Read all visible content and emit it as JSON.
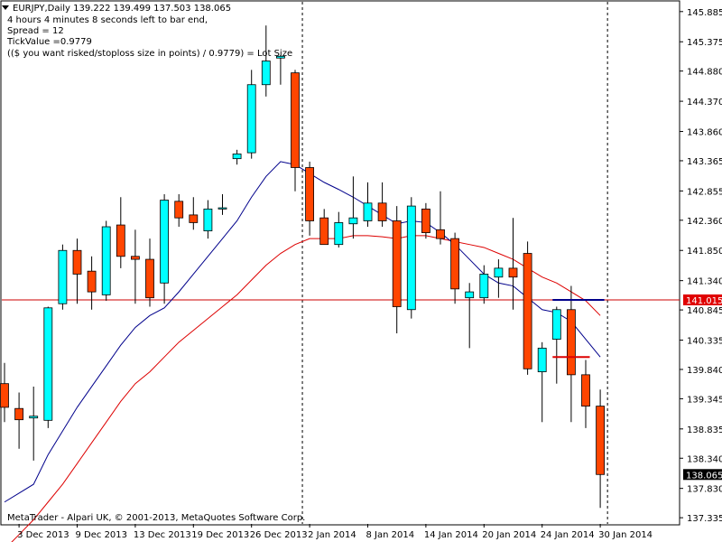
{
  "header": {
    "symbol_line": "EURJPY,Daily  139.222 139.499 137.503 138.065",
    "timer_line": "4 hours 4 minutes 8 seconds left to bar end,",
    "spread_line": "Spread = 12",
    "tickvalue_line": "TickValue =0.9779",
    "lot_line": "(($ you want risked/stoploss size in points) / 0.9779) = Lot Size"
  },
  "copyright": "MetaTrader - Alpari UK, © 2001-2013, MetaQuotes Software Corp.",
  "colors": {
    "bull": "#00FFFF",
    "bear": "#FF4500",
    "fast_ma": "#00008B",
    "slow_ma": "#DD0000",
    "hline": "#CC0000",
    "price_label_bg": "#E00000"
  },
  "chart_data": {
    "type": "candlestick",
    "symbol": "EURJPY",
    "timeframe": "Daily",
    "ylim": [
      137.23,
      146.05
    ],
    "y_ticks": [
      "145.885",
      "145.375",
      "144.880",
      "144.370",
      "143.860",
      "143.365",
      "142.855",
      "142.360",
      "141.850",
      "141.340",
      "140.845",
      "140.335",
      "139.840",
      "139.345",
      "138.835",
      "138.340",
      "137.830",
      "137.335"
    ],
    "x_ticks": [
      {
        "label": "3 Dec 2013",
        "index": 1
      },
      {
        "label": "9 Dec 2013",
        "index": 5
      },
      {
        "label": "13 Dec 2013",
        "index": 9
      },
      {
        "label": "19 Dec 2013",
        "index": 13
      },
      {
        "label": "26 Dec 2013",
        "index": 17
      },
      {
        "label": "2 Jan 2014",
        "index": 21
      },
      {
        "label": "8 Jan 2014",
        "index": 25
      },
      {
        "label": "14 Jan 2014",
        "index": 29
      },
      {
        "label": "20 Jan 2014",
        "index": 33
      },
      {
        "label": "24 Jan 2014",
        "index": 37
      },
      {
        "label": "30 Jan 2014",
        "index": 41
      }
    ],
    "ohlc": [
      [
        139.6,
        139.95,
        138.95,
        139.2
      ],
      [
        139.18,
        139.45,
        138.5,
        138.99
      ],
      [
        139.02,
        139.55,
        138.3,
        139.05
      ],
      [
        138.98,
        140.9,
        138.85,
        140.88
      ],
      [
        140.95,
        141.95,
        140.85,
        141.85
      ],
      [
        141.85,
        142.05,
        140.95,
        141.45
      ],
      [
        141.5,
        141.75,
        140.85,
        141.15
      ],
      [
        141.1,
        142.35,
        141.0,
        142.25
      ],
      [
        142.28,
        142.75,
        141.55,
        141.75
      ],
      [
        141.75,
        142.2,
        140.95,
        141.7
      ],
      [
        141.7,
        142.05,
        140.9,
        141.05
      ],
      [
        141.3,
        142.8,
        140.95,
        142.7
      ],
      [
        142.68,
        142.8,
        142.25,
        142.4
      ],
      [
        142.45,
        142.75,
        142.2,
        142.32
      ],
      [
        142.18,
        142.7,
        142.05,
        142.55
      ],
      [
        142.55,
        142.8,
        142.45,
        142.57
      ],
      [
        143.4,
        143.55,
        143.3,
        143.48
      ],
      [
        143.5,
        144.9,
        143.4,
        144.65
      ],
      [
        144.65,
        145.65,
        144.45,
        145.05
      ],
      [
        145.1,
        145.15,
        144.65,
        145.13
      ],
      [
        144.85,
        144.9,
        142.85,
        143.25
      ],
      [
        143.25,
        143.35,
        142.1,
        142.35
      ],
      [
        142.4,
        142.55,
        141.95,
        141.95
      ],
      [
        141.95,
        142.5,
        141.9,
        142.32
      ],
      [
        142.3,
        143.1,
        142.05,
        142.4
      ],
      [
        142.35,
        143.0,
        142.25,
        142.65
      ],
      [
        142.65,
        143.0,
        142.25,
        142.35
      ],
      [
        142.35,
        142.6,
        140.45,
        140.9
      ],
      [
        140.85,
        142.75,
        140.7,
        142.6
      ],
      [
        142.55,
        142.65,
        142.05,
        142.15
      ],
      [
        142.2,
        142.85,
        141.95,
        142.05
      ],
      [
        142.05,
        142.15,
        140.95,
        141.2
      ],
      [
        141.05,
        141.3,
        140.2,
        141.15
      ],
      [
        141.05,
        141.6,
        140.95,
        141.45
      ],
      [
        141.4,
        141.7,
        141.05,
        141.55
      ],
      [
        141.55,
        142.4,
        140.85,
        141.4
      ],
      [
        141.8,
        142.0,
        139.75,
        139.85
      ],
      [
        139.8,
        140.3,
        138.95,
        140.2
      ],
      [
        140.35,
        140.9,
        139.6,
        140.85
      ],
      [
        140.85,
        141.25,
        138.95,
        139.75
      ],
      [
        139.75,
        140.0,
        138.85,
        139.22
      ],
      [
        139.22,
        139.5,
        137.5,
        138.065
      ]
    ],
    "fast_ma": [
      137.6,
      137.75,
      137.9,
      138.4,
      138.8,
      139.2,
      139.55,
      139.9,
      140.25,
      140.55,
      140.75,
      140.88,
      141.15,
      141.45,
      141.75,
      142.05,
      142.35,
      142.75,
      143.1,
      143.35,
      143.3,
      143.15,
      143.0,
      142.88,
      142.75,
      142.6,
      142.45,
      142.3,
      142.35,
      142.32,
      142.15,
      141.95,
      141.7,
      141.45,
      141.3,
      141.25,
      141.05,
      140.85,
      140.8,
      140.65,
      140.35,
      140.05
    ],
    "slow_ma": [
      136.8,
      137.05,
      137.3,
      137.6,
      137.9,
      138.25,
      138.6,
      138.95,
      139.3,
      139.6,
      139.8,
      140.05,
      140.3,
      140.5,
      140.7,
      140.9,
      141.1,
      141.35,
      141.6,
      141.8,
      141.95,
      142.05,
      142.05,
      142.05,
      142.1,
      142.1,
      142.08,
      142.05,
      142.1,
      142.1,
      142.05,
      142.0,
      141.95,
      141.9,
      141.8,
      141.7,
      141.55,
      141.4,
      141.3,
      141.15,
      141.0,
      140.75
    ],
    "hline": {
      "value": 141.015,
      "label": "141.015"
    },
    "last_price": {
      "value": 138.065,
      "label": "138.065"
    },
    "blue_level": {
      "value": 141.015,
      "from_index": 38,
      "to_index": 41
    },
    "red_marker": {
      "value": 140.05,
      "from_index": 38,
      "to_index": 40
    },
    "vlines_index": [
      20.5,
      41.5
    ]
  }
}
